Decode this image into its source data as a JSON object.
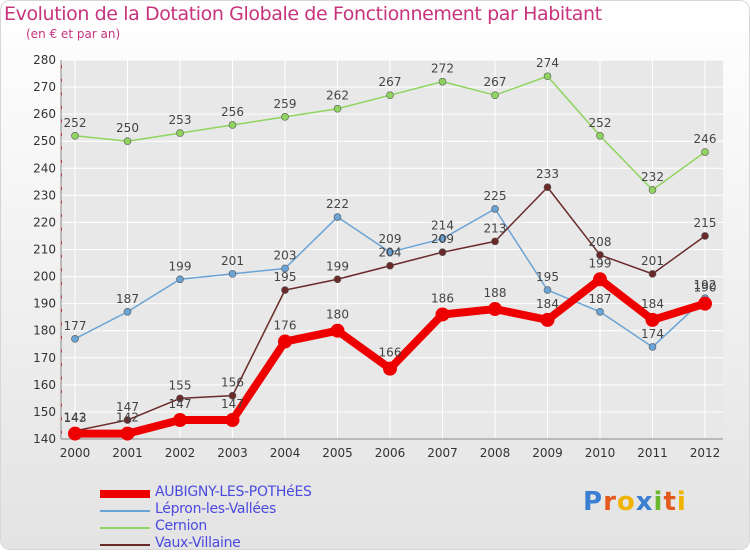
{
  "title": "Evolution de la Dotation Globale de Fonctionnement par Habitant",
  "subtitle": "(en € et par an)",
  "brand": {
    "text": "Proxiti",
    "colors": [
      "#3a7fd1",
      "#e35a1c",
      "#f0b400",
      "#3a7fd1",
      "#69b82e",
      "#e35a1c",
      "#f0b400"
    ]
  },
  "colors": {
    "title": "#c8337d",
    "axis_text": "#333333",
    "grid": "#ffffff",
    "tick_marker": "#e00000"
  },
  "chart_data": {
    "type": "line",
    "title": "Evolution de la Dotation Globale de Fonctionnement par Habitant",
    "subtitle": "(en € et par an)",
    "xlabel": "",
    "ylabel": "",
    "x": [
      "2000",
      "2001",
      "2002",
      "2003",
      "2004",
      "2005",
      "2006",
      "2007",
      "2008",
      "2009",
      "2010",
      "2011",
      "2012"
    ],
    "y_ticks": [
      140,
      150,
      160,
      170,
      180,
      190,
      200,
      210,
      220,
      230,
      240,
      250,
      260,
      270,
      280
    ],
    "ylim": [
      140,
      280
    ],
    "grid": true,
    "legend_position": "bottom-left",
    "series": [
      {
        "name": "AUBIGNY-LES-POTHéES",
        "color": "#ee0000",
        "style": "thick",
        "values": [
          142,
          142,
          147,
          147,
          176,
          180,
          166,
          186,
          188,
          184,
          199,
          184,
          190
        ],
        "labels": [
          "142",
          "142",
          "147",
          "147",
          "176",
          "180",
          "166",
          "186",
          "188",
          "184",
          "199",
          "184",
          "190"
        ]
      },
      {
        "name": "Lépron-les-Vallées",
        "color": "#6aa3d6",
        "style": "thin",
        "values": [
          177,
          187,
          199,
          201,
          203,
          222,
          209,
          214,
          225,
          195,
          187,
          174,
          192
        ],
        "labels": [
          "177",
          "187",
          "199",
          "201",
          "203",
          "222",
          "209",
          "214",
          "225",
          "195",
          "187",
          "174",
          "192"
        ]
      },
      {
        "name": "Cernion",
        "color": "#8fd45e",
        "style": "thin",
        "values": [
          252,
          250,
          253,
          256,
          259,
          262,
          267,
          272,
          267,
          274,
          252,
          232,
          246
        ],
        "labels": [
          "252",
          "250",
          "253",
          "256",
          "259",
          "262",
          "267",
          "272",
          "267",
          "274",
          "252",
          "232",
          "246"
        ]
      },
      {
        "name": "Vaux-Villaine",
        "color": "#6a2a2a",
        "style": "thin",
        "values": [
          143,
          147,
          155,
          156,
          195,
          199,
          204,
          209,
          213,
          233,
          208,
          201,
          215
        ],
        "labels": [
          "143",
          "147",
          "155",
          "156",
          "195",
          "199",
          "204",
          "209",
          "213",
          "233",
          "208",
          "201",
          "215"
        ]
      }
    ]
  }
}
